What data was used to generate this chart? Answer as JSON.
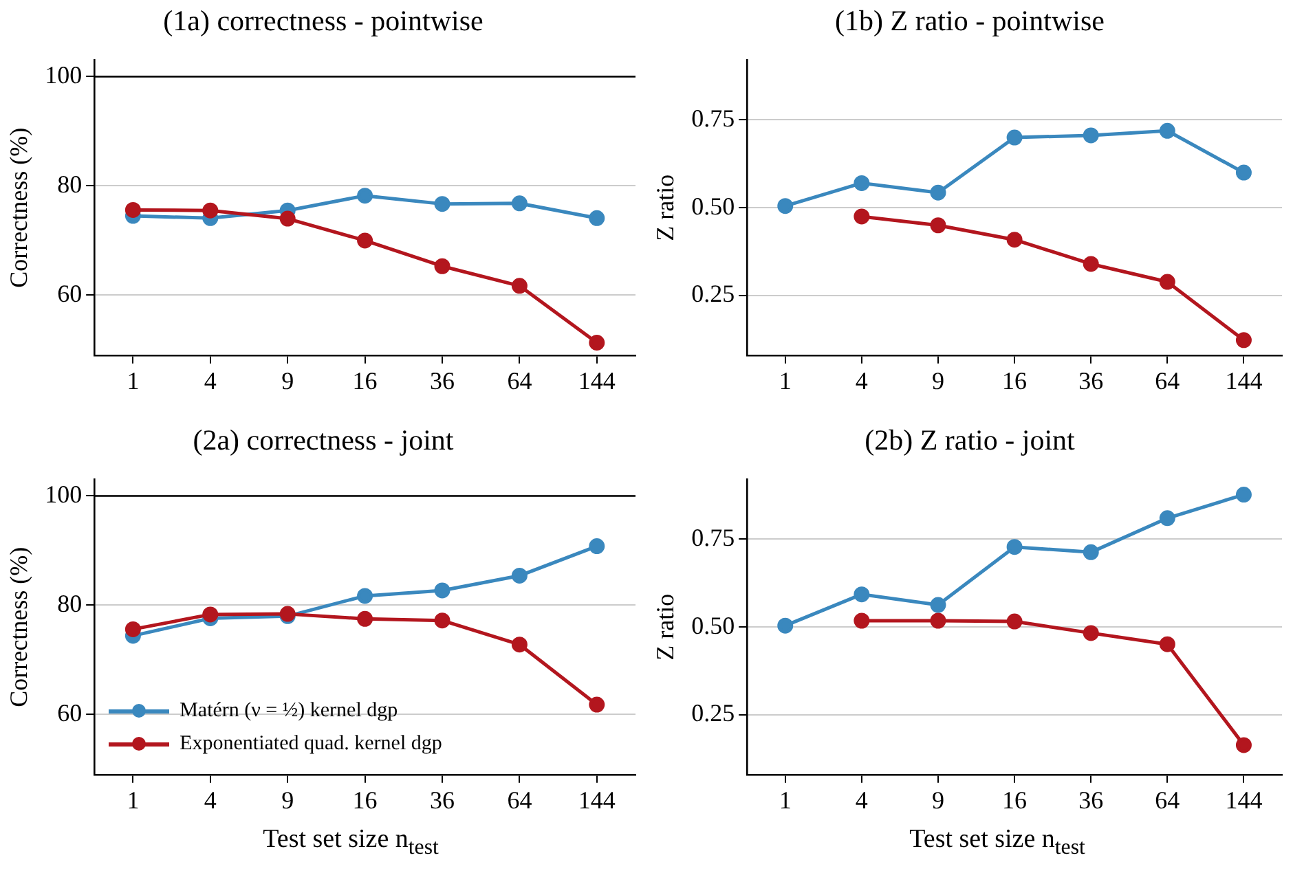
{
  "chart_data": [
    {
      "type": "line",
      "title": "(1a) correctness - pointwise",
      "ylabel": "Correctness (%)",
      "categories": [
        "1",
        "4",
        "9",
        "16",
        "36",
        "64",
        "144"
      ],
      "ylim": [
        49,
        103
      ],
      "yticks": [
        60,
        80,
        100
      ],
      "grid": "y",
      "marker": "circle",
      "ref_lines": [
        {
          "axis": "y",
          "value": 100,
          "color": "#000000"
        }
      ],
      "series": [
        {
          "color": "#3a88be",
          "values": [
            74.5,
            74.1,
            75.5,
            78.2,
            76.7,
            76.8,
            74.1
          ]
        },
        {
          "color": "#b3161e",
          "values": [
            75.6,
            75.5,
            74.0,
            70.0,
            65.3,
            61.7,
            51.3
          ]
        }
      ]
    },
    {
      "type": "line",
      "title": "(1b) Z ratio - pointwise",
      "ylabel": "Z ratio",
      "categories": [
        "1",
        "4",
        "9",
        "16",
        "36",
        "64",
        "144"
      ],
      "ylim": [
        0.08,
        0.92
      ],
      "yticks": [
        0.25,
        {
          "value": 0.5,
          "label": "0.50"
        },
        0.75
      ],
      "grid": "y",
      "marker": "circle",
      "series": [
        {
          "color": "#3a88be",
          "values": [
            0.505,
            0.57,
            0.543,
            0.7,
            0.706,
            0.719,
            0.6
          ]
        },
        {
          "color": "#b3161e",
          "values": [
            null,
            0.475,
            0.45,
            0.409,
            0.34,
            0.289,
            0.123
          ]
        }
      ]
    },
    {
      "type": "line",
      "title": "(2a) correctness - joint",
      "xlabel": "Test set size n$_{test}$",
      "ylabel": "Correctness (%)",
      "categories": [
        "1",
        "4",
        "9",
        "16",
        "36",
        "64",
        "144"
      ],
      "ylim": [
        49,
        103
      ],
      "yticks": [
        60,
        80,
        100
      ],
      "grid": "y",
      "marker": "circle",
      "legend": "bottom left",
      "ref_lines": [
        {
          "axis": "y",
          "value": 100,
          "color": "#000000"
        }
      ],
      "series": [
        {
          "name": "Matérn (ν = ½) kernel dgp",
          "color": "#3a88be",
          "values": [
            74.4,
            77.6,
            78.0,
            81.7,
            82.7,
            85.4,
            90.8
          ]
        },
        {
          "name": "Exponentiated quad. kernel dgp",
          "color": "#b3161e",
          "values": [
            75.6,
            78.3,
            78.4,
            77.5,
            77.2,
            72.8,
            61.8
          ]
        }
      ]
    },
    {
      "type": "line",
      "title": "(2b) Z ratio - joint",
      "xlabel": "Test set size n$_{test}$",
      "ylabel": "Z ratio",
      "categories": [
        "1",
        "4",
        "9",
        "16",
        "36",
        "64",
        "144"
      ],
      "ylim": [
        0.08,
        0.92
      ],
      "yticks": [
        0.25,
        {
          "value": 0.5,
          "label": "0.50"
        },
        0.75
      ],
      "grid": "y",
      "marker": "circle",
      "series": [
        {
          "color": "#3a88be",
          "values": [
            0.504,
            0.593,
            0.563,
            0.728,
            0.713,
            0.81,
            0.877
          ]
        },
        {
          "color": "#b3161e",
          "values": [
            null,
            0.518,
            0.518,
            0.516,
            0.483,
            0.451,
            0.164
          ]
        }
      ]
    }
  ]
}
